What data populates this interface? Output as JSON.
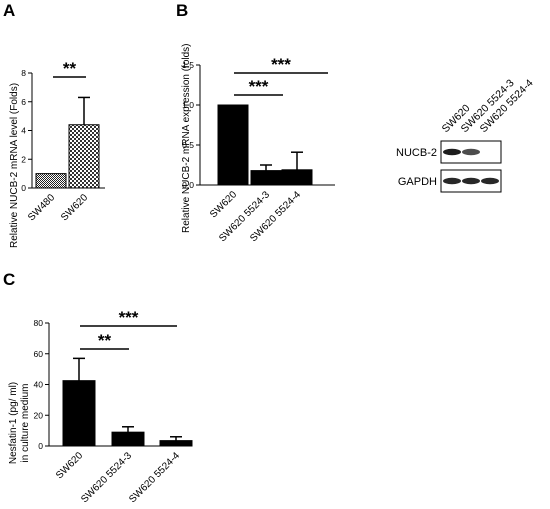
{
  "chart_data": [
    {
      "panel": "A",
      "type": "bar",
      "ylabel": "Relative NUCB-2 mRNA level (Folds)",
      "categories": [
        "SW480",
        "SW620"
      ],
      "values": [
        1.0,
        4.4
      ],
      "errors": [
        0,
        1.9
      ],
      "patterns": [
        "fine-check",
        "checkerboard"
      ],
      "ylim": [
        0,
        8
      ],
      "yticks": [
        "0",
        "2",
        "4",
        "6",
        "8"
      ],
      "significance": [
        {
          "from": 0,
          "to": 1,
          "label": "**"
        }
      ]
    },
    {
      "panel": "B",
      "type": "bar",
      "ylabel": "Relative NUCB-2 mRNA expression (folds)",
      "categories": [
        "SW620",
        "SW620 5524-3",
        "SW620 5524-4"
      ],
      "values": [
        1.0,
        0.18,
        0.19
      ],
      "errors": [
        0,
        0.07,
        0.22
      ],
      "ylim": [
        0,
        1.5
      ],
      "yticks": [
        "0.0",
        "0.5",
        "1.0",
        "1.5"
      ],
      "significance": [
        {
          "from": 0,
          "to": 1,
          "label": "***"
        },
        {
          "from": 0,
          "to": 2,
          "label": "***"
        }
      ]
    },
    {
      "panel": "C",
      "type": "bar",
      "ylabel": "Nesfatin-1 (pg/ ml)",
      "ylabel2": "in culture medium",
      "categories": [
        "SW620",
        "SW620 5524-3",
        "SW620 5524-4"
      ],
      "values": [
        42.5,
        9.0,
        3.5
      ],
      "errors": [
        14.5,
        3.5,
        2.5
      ],
      "ylim": [
        0,
        80
      ],
      "yticks": [
        "0",
        "20",
        "40",
        "60",
        "80"
      ],
      "significance": [
        {
          "from": 0,
          "to": 1,
          "label": "**"
        },
        {
          "from": 0,
          "to": 2,
          "label": "***"
        }
      ]
    }
  ],
  "blot": {
    "lanes": [
      "SW620",
      "SW620 5524-3",
      "SW620 5524-4"
    ],
    "rows": [
      {
        "label": "NUCB-2",
        "intensities": [
          0.95,
          0.75,
          0.05
        ]
      },
      {
        "label": "GAPDH",
        "intensities": [
          0.9,
          0.9,
          0.9
        ]
      }
    ]
  }
}
